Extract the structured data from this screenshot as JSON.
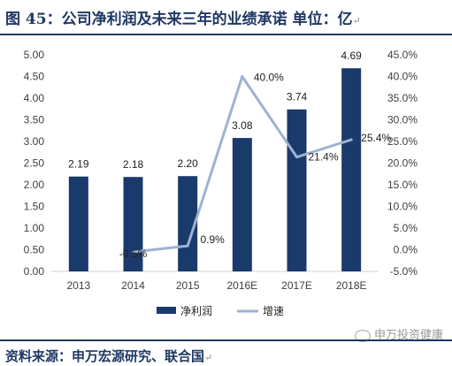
{
  "figure": {
    "title": "图 45：公司净利润及未来三年的业绩承诺 单位：亿",
    "source": "资料来源：申万宏源研究、联合国",
    "watermark": "申万投资健康",
    "return_mark": "↵"
  },
  "chart_data": {
    "type": "bar",
    "categories": [
      "2013",
      "2014",
      "2015",
      "2016E",
      "2017E",
      "2018E"
    ],
    "series": [
      {
        "name": "净利润",
        "type": "bar",
        "axis": "left",
        "color": "#1a3a6b",
        "values": [
          2.19,
          2.18,
          2.2,
          3.08,
          3.74,
          4.69
        ],
        "labels": [
          "2.19",
          "2.18",
          "2.20",
          "3.08",
          "3.74",
          "4.69"
        ]
      },
      {
        "name": "增速",
        "type": "line",
        "axis": "right",
        "color": "#9db3d3",
        "values": [
          null,
          -0.5,
          0.9,
          40.0,
          21.4,
          25.4
        ],
        "labels": [
          "",
          "-0.5%",
          "0.9%",
          "40.0%",
          "21.4%",
          "25.4%"
        ]
      }
    ],
    "y_left": {
      "min": 0,
      "max": 5,
      "step": 0.5,
      "ticks": [
        "0.00",
        "0.50",
        "1.00",
        "1.50",
        "2.00",
        "2.50",
        "3.00",
        "3.50",
        "4.00",
        "4.50",
        "5.00"
      ]
    },
    "y_right": {
      "min": -5,
      "max": 45,
      "step": 5,
      "ticks": [
        "-5.0%",
        "0.0%",
        "5.0%",
        "10.0%",
        "15.0%",
        "20.0%",
        "25.0%",
        "30.0%",
        "35.0%",
        "40.0%",
        "45.0%"
      ]
    },
    "grid": false,
    "legend": "bottom"
  }
}
